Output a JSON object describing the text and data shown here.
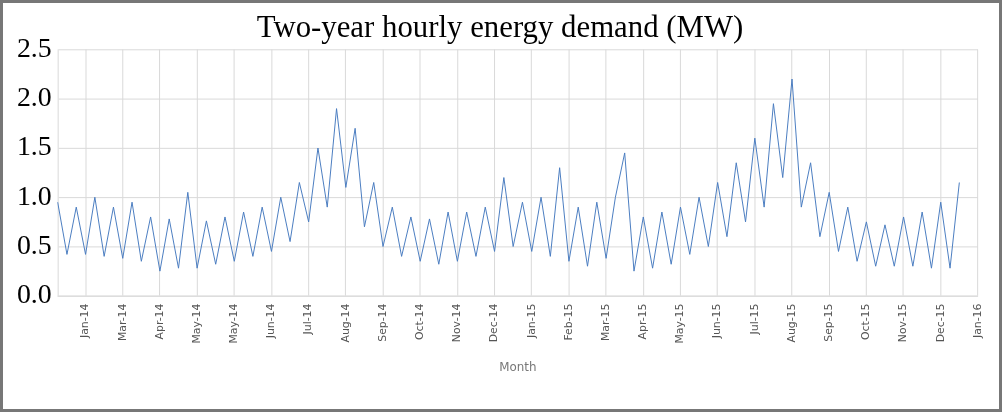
{
  "chart_data": {
    "type": "line",
    "title": "Two-year hourly energy demand (MW)",
    "xlabel": "Month",
    "grid": true,
    "categories": [
      null,
      null,
      null,
      "Jan-14",
      null,
      null,
      null,
      "Mar-14",
      null,
      null,
      null,
      "Apr-14",
      null,
      null,
      null,
      "May-14",
      null,
      null,
      null,
      "May-14",
      null,
      null,
      null,
      "Jun-14",
      null,
      null,
      null,
      "Jul-14",
      null,
      null,
      null,
      "Aug-14",
      null,
      null,
      null,
      "Sep-14",
      null,
      null,
      null,
      "Oct-14",
      null,
      null,
      null,
      "Nov-14",
      null,
      null,
      null,
      "Dec-14",
      null,
      null,
      null,
      "Jan-15",
      null,
      null,
      null,
      "Feb-15",
      null,
      null,
      null,
      "Mar-15",
      null,
      null,
      null,
      "Apr-15",
      null,
      null,
      null,
      "May-15",
      null,
      null,
      null,
      "Jun-15",
      null,
      null,
      null,
      "Jul-15",
      null,
      null,
      null,
      "Aug-15",
      null,
      null,
      null,
      "Sep-15",
      null,
      null,
      null,
      "Oct-15",
      null,
      null,
      null,
      "Nov-15",
      null,
      null,
      null,
      "Dec-15",
      null,
      null,
      null,
      "Jan-16"
    ],
    "series": [
      {
        "color": "#4a7cc0",
        "values": [
          0.95,
          0.42,
          0.9,
          0.42,
          1.0,
          0.4,
          0.9,
          0.38,
          0.95,
          0.35,
          0.8,
          0.25,
          0.78,
          0.28,
          1.05,
          0.28,
          0.76,
          0.32,
          0.8,
          0.35,
          0.85,
          0.4,
          0.9,
          0.45,
          1.0,
          0.55,
          1.15,
          0.75,
          1.5,
          0.9,
          1.9,
          1.1,
          1.7,
          0.7,
          1.15,
          0.5,
          0.9,
          0.4,
          0.8,
          0.35,
          0.78,
          0.32,
          0.85,
          0.35,
          0.85,
          0.4,
          0.9,
          0.45,
          1.2,
          0.5,
          0.95,
          0.45,
          1.0,
          0.4,
          1.3,
          0.35,
          0.9,
          0.3,
          0.95,
          0.38,
          1.0,
          1.45,
          0.25,
          0.8,
          0.28,
          0.85,
          0.32,
          0.9,
          0.42,
          1.0,
          0.5,
          1.15,
          0.6,
          1.35,
          0.75,
          1.6,
          0.9,
          1.95,
          1.2,
          2.2,
          0.9,
          1.35,
          0.6,
          1.05,
          0.45,
          0.9,
          0.35,
          0.75,
          0.3,
          0.72,
          0.3,
          0.8,
          0.3,
          0.85,
          0.28,
          0.95,
          0.28,
          1.15,
          null,
          null
        ]
      }
    ],
    "ylim": [
      0,
      2.5
    ],
    "yticks": [
      {
        "value": 0,
        "label": "0.0"
      },
      0.5,
      {
        "value": 1,
        "label": "1.0"
      },
      1.5,
      {
        "value": 2,
        "label": "2.0"
      },
      2.5
    ]
  }
}
